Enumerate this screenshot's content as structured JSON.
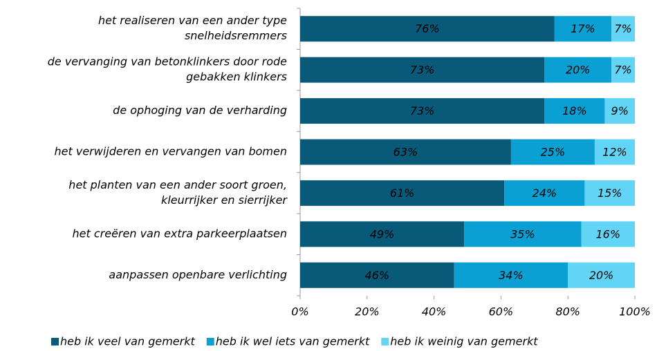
{
  "chart_data": {
    "type": "stacked_barh",
    "categories": [
      [
        "het realiseren van een ander type",
        "snelheidsremmers"
      ],
      [
        "de vervanging van betonklinkers door rode",
        "gebakken klinkers"
      ],
      [
        "de ophoging van de verharding"
      ],
      [
        "het verwijderen en vervangen van bomen"
      ],
      [
        "het planten van een ander soort groen,",
        "kleurrijker en sierrijker"
      ],
      [
        "het creëren van extra parkeerplaatsen"
      ],
      [
        "aanpassen openbare verlichting"
      ]
    ],
    "series": [
      {
        "name": "heb ik veel van gemerkt",
        "color": "#085a78",
        "label_color": "#ffffff",
        "values": [
          76,
          73,
          73,
          63,
          61,
          49,
          46
        ],
        "value_labels": [
          "76%",
          "73%",
          "73%",
          "63%",
          "61%",
          "49%",
          "46%"
        ]
      },
      {
        "name": "heb ik wel iets van gemerkt",
        "color": "#0aa0d4",
        "label_color": "#ffffff",
        "values": [
          17,
          20,
          18,
          25,
          24,
          35,
          34
        ],
        "value_labels": [
          "17%",
          "20%",
          "18%",
          "25%",
          "24%",
          "35%",
          "34%"
        ]
      },
      {
        "name": "heb ik weinig van gemerkt",
        "color": "#62d4f6",
        "label_color": "#000000",
        "values": [
          7,
          7,
          9,
          12,
          15,
          16,
          20
        ],
        "value_labels": [
          "7%",
          "7%",
          "9%",
          "12%",
          "15%",
          "16%",
          "20%"
        ]
      }
    ],
    "xlim": [
      0,
      100
    ],
    "xticks": [
      {
        "value": 0,
        "label": "0%"
      },
      {
        "value": 20,
        "label": "20%"
      },
      {
        "value": 40,
        "label": "40%"
      },
      {
        "value": 60,
        "label": "60%"
      },
      {
        "value": 80,
        "label": "80%"
      },
      {
        "value": 100,
        "label": "100%"
      }
    ],
    "legend": "bottom"
  }
}
